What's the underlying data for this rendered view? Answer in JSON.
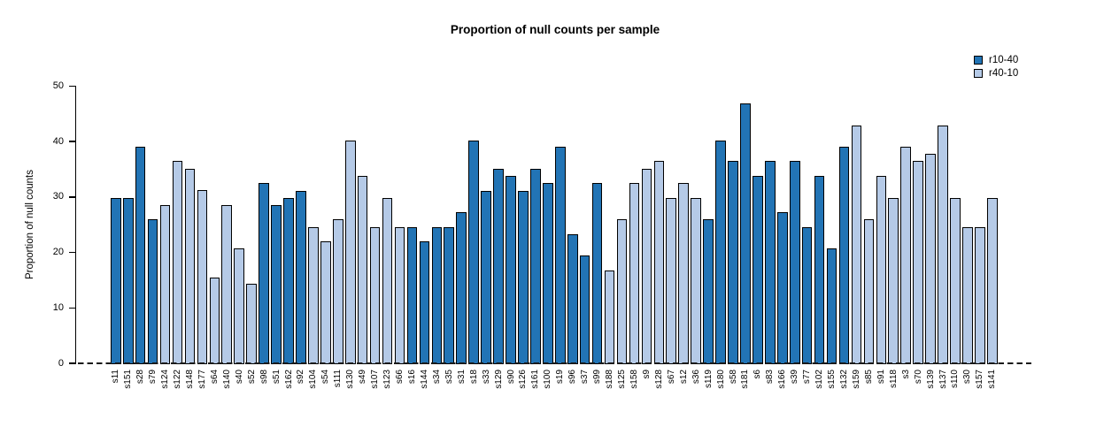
{
  "chart_data": {
    "type": "bar",
    "title": "Proportion of null counts per sample",
    "xlabel": "",
    "ylabel": "Proportion of null counts",
    "ylim": [
      0,
      50
    ],
    "yticks": [
      0,
      10,
      20,
      30,
      40,
      50
    ],
    "grid": false,
    "legend_position": "top-right",
    "series_legend": [
      {
        "name": "r10-40",
        "color": "#2274b5"
      },
      {
        "name": "r40-10",
        "color": "#b5cae7"
      }
    ],
    "bars": [
      {
        "label": "s11",
        "value": 29.8,
        "group": "r10-40"
      },
      {
        "label": "s151",
        "value": 29.8,
        "group": "r10-40"
      },
      {
        "label": "s28",
        "value": 39.1,
        "group": "r10-40"
      },
      {
        "label": "s79",
        "value": 26.0,
        "group": "r10-40"
      },
      {
        "label": "s124",
        "value": 28.5,
        "group": "r40-10"
      },
      {
        "label": "s122",
        "value": 36.5,
        "group": "r40-10"
      },
      {
        "label": "s148",
        "value": 35.0,
        "group": "r40-10"
      },
      {
        "label": "s177",
        "value": 31.3,
        "group": "r40-10"
      },
      {
        "label": "s64",
        "value": 15.5,
        "group": "r40-10"
      },
      {
        "label": "s140",
        "value": 28.5,
        "group": "r40-10"
      },
      {
        "label": "s40",
        "value": 20.8,
        "group": "r40-10"
      },
      {
        "label": "s52",
        "value": 14.3,
        "group": "r40-10"
      },
      {
        "label": "s98",
        "value": 32.5,
        "group": "r10-40"
      },
      {
        "label": "s51",
        "value": 28.5,
        "group": "r10-40"
      },
      {
        "label": "s162",
        "value": 29.8,
        "group": "r10-40"
      },
      {
        "label": "s92",
        "value": 31.1,
        "group": "r10-40"
      },
      {
        "label": "s104",
        "value": 24.5,
        "group": "r40-10"
      },
      {
        "label": "s54",
        "value": 22.0,
        "group": "r40-10"
      },
      {
        "label": "s111",
        "value": 26.0,
        "group": "r40-10"
      },
      {
        "label": "s130",
        "value": 40.2,
        "group": "r40-10"
      },
      {
        "label": "s49",
        "value": 33.8,
        "group": "r40-10"
      },
      {
        "label": "s107",
        "value": 24.5,
        "group": "r40-10"
      },
      {
        "label": "s123",
        "value": 29.8,
        "group": "r40-10"
      },
      {
        "label": "s66",
        "value": 24.5,
        "group": "r40-10"
      },
      {
        "label": "s16",
        "value": 24.5,
        "group": "r10-40"
      },
      {
        "label": "s144",
        "value": 22.0,
        "group": "r10-40"
      },
      {
        "label": "s34",
        "value": 24.5,
        "group": "r10-40"
      },
      {
        "label": "s35",
        "value": 24.5,
        "group": "r10-40"
      },
      {
        "label": "s31",
        "value": 27.3,
        "group": "r10-40"
      },
      {
        "label": "s18",
        "value": 40.2,
        "group": "r10-40"
      },
      {
        "label": "s33",
        "value": 31.1,
        "group": "r10-40"
      },
      {
        "label": "s129",
        "value": 35.0,
        "group": "r10-40"
      },
      {
        "label": "s90",
        "value": 33.8,
        "group": "r10-40"
      },
      {
        "label": "s126",
        "value": 31.1,
        "group": "r10-40"
      },
      {
        "label": "s161",
        "value": 35.0,
        "group": "r10-40"
      },
      {
        "label": "s100",
        "value": 32.5,
        "group": "r10-40"
      },
      {
        "label": "s19",
        "value": 39.1,
        "group": "r10-40"
      },
      {
        "label": "s96",
        "value": 23.3,
        "group": "r10-40"
      },
      {
        "label": "s37",
        "value": 19.5,
        "group": "r10-40"
      },
      {
        "label": "s99",
        "value": 32.5,
        "group": "r10-40"
      },
      {
        "label": "s188",
        "value": 16.8,
        "group": "r40-10"
      },
      {
        "label": "s125",
        "value": 26.0,
        "group": "r40-10"
      },
      {
        "label": "s158",
        "value": 32.5,
        "group": "r40-10"
      },
      {
        "label": "s9",
        "value": 35.0,
        "group": "r40-10"
      },
      {
        "label": "s128",
        "value": 36.5,
        "group": "r40-10"
      },
      {
        "label": "s67",
        "value": 29.8,
        "group": "r40-10"
      },
      {
        "label": "s12",
        "value": 32.5,
        "group": "r40-10"
      },
      {
        "label": "s36",
        "value": 29.8,
        "group": "r40-10"
      },
      {
        "label": "s119",
        "value": 26.0,
        "group": "r10-40"
      },
      {
        "label": "s180",
        "value": 40.2,
        "group": "r10-40"
      },
      {
        "label": "s58",
        "value": 36.5,
        "group": "r10-40"
      },
      {
        "label": "s181",
        "value": 46.9,
        "group": "r10-40"
      },
      {
        "label": "s6",
        "value": 33.8,
        "group": "r10-40"
      },
      {
        "label": "s83",
        "value": 36.5,
        "group": "r10-40"
      },
      {
        "label": "s166",
        "value": 27.3,
        "group": "r10-40"
      },
      {
        "label": "s39",
        "value": 36.5,
        "group": "r10-40"
      },
      {
        "label": "s77",
        "value": 24.5,
        "group": "r10-40"
      },
      {
        "label": "s102",
        "value": 33.8,
        "group": "r10-40"
      },
      {
        "label": "s155",
        "value": 20.8,
        "group": "r10-40"
      },
      {
        "label": "s132",
        "value": 39.1,
        "group": "r10-40"
      },
      {
        "label": "s159",
        "value": 42.9,
        "group": "r40-10"
      },
      {
        "label": "s85",
        "value": 26.0,
        "group": "r40-10"
      },
      {
        "label": "s91",
        "value": 33.8,
        "group": "r40-10"
      },
      {
        "label": "s118",
        "value": 29.8,
        "group": "r40-10"
      },
      {
        "label": "s3",
        "value": 39.1,
        "group": "r40-10"
      },
      {
        "label": "s70",
        "value": 36.5,
        "group": "r40-10"
      },
      {
        "label": "s139",
        "value": 37.8,
        "group": "r40-10"
      },
      {
        "label": "s137",
        "value": 42.9,
        "group": "r40-10"
      },
      {
        "label": "s110",
        "value": 29.8,
        "group": "r40-10"
      },
      {
        "label": "s30",
        "value": 24.5,
        "group": "r40-10"
      },
      {
        "label": "s157",
        "value": 24.5,
        "group": "r40-10"
      },
      {
        "label": "s141",
        "value": 29.8,
        "group": "r40-10"
      }
    ]
  },
  "colors": {
    "background": "#ffffff",
    "axis": "#000000",
    "bar_border": "#000000",
    "zero_dashed_line": "#1a1a1a",
    "series_dark": "#2274b5",
    "series_light": "#b5cae7"
  }
}
